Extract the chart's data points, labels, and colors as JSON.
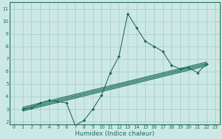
{
  "xlabel": "Humidex (Indice chaleur)",
  "bg_color": "#cce8e4",
  "grid_color": "#aaccc8",
  "line_color": "#1a6b5a",
  "xlim": [
    -0.5,
    23.5
  ],
  "ylim": [
    1.8,
    11.5
  ],
  "xticks": [
    0,
    1,
    2,
    3,
    4,
    5,
    6,
    7,
    8,
    9,
    10,
    11,
    12,
    13,
    14,
    15,
    16,
    17,
    18,
    19,
    20,
    21,
    22,
    23
  ],
  "yticks": [
    2,
    3,
    4,
    5,
    6,
    7,
    8,
    9,
    10,
    11
  ],
  "scatter_x": [
    1,
    2,
    3,
    4,
    5,
    6,
    7,
    8,
    9,
    10,
    11,
    12,
    13,
    14,
    15,
    16,
    17,
    18,
    19,
    20,
    21,
    22
  ],
  "scatter_y": [
    3.0,
    3.1,
    3.5,
    3.7,
    3.6,
    3.5,
    1.7,
    2.1,
    3.0,
    4.1,
    5.9,
    7.2,
    10.6,
    9.5,
    8.4,
    8.0,
    7.6,
    6.5,
    6.2,
    6.3,
    5.9,
    6.6
  ],
  "lines": [
    {
      "x": [
        1,
        22
      ],
      "y": [
        3.05,
        6.65
      ]
    },
    {
      "x": [
        1,
        22
      ],
      "y": [
        2.85,
        6.45
      ]
    },
    {
      "x": [
        1,
        22
      ],
      "y": [
        2.95,
        6.55
      ]
    },
    {
      "x": [
        1,
        22
      ],
      "y": [
        3.15,
        6.75
      ]
    }
  ],
  "tick_fontsize": 5.0,
  "xlabel_fontsize": 6.5
}
